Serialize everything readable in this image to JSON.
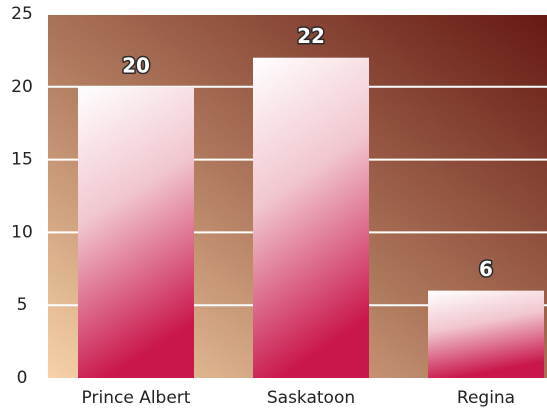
{
  "chart_data": {
    "type": "bar",
    "categories": [
      "Prince Albert",
      "Saskatoon",
      "Regina"
    ],
    "values": [
      20,
      22,
      6
    ],
    "ylim": [
      0,
      25
    ],
    "yticks": [
      0,
      5,
      10,
      15,
      20,
      25
    ],
    "grid": true
  }
}
